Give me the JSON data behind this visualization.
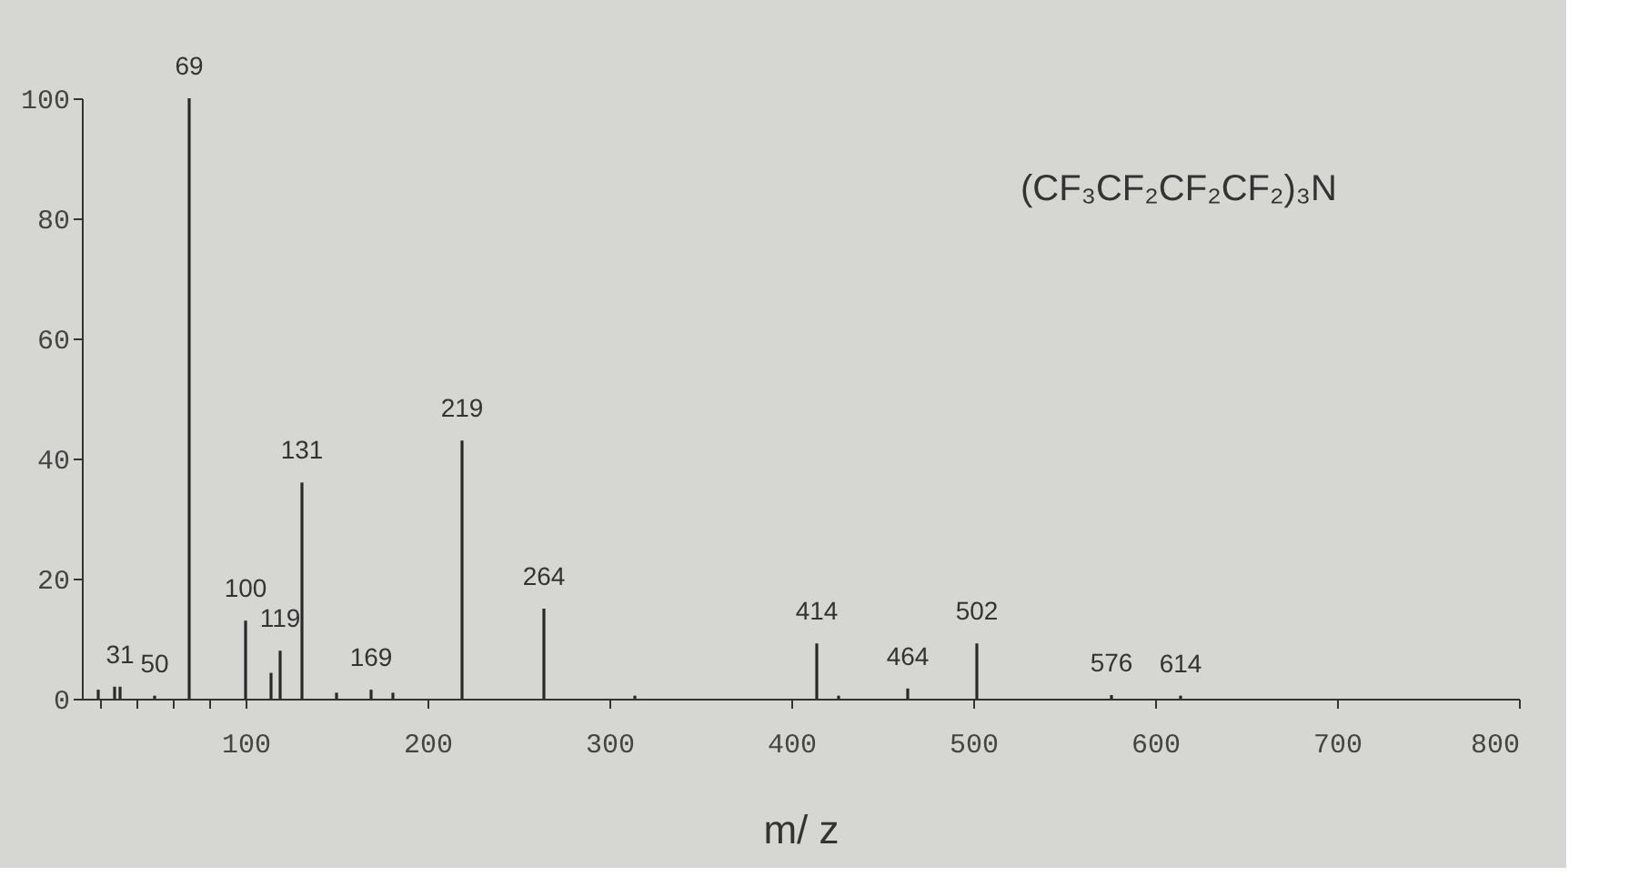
{
  "chart_data": {
    "type": "bar",
    "xlabel": "m/ z",
    "x": [
      19,
      28,
      31,
      50,
      69,
      100,
      114,
      119,
      131,
      150,
      169,
      181,
      219,
      264,
      314,
      414,
      426,
      464,
      502,
      576,
      614
    ],
    "values": [
      1.5,
      2,
      2,
      0.5,
      100,
      13,
      4.3,
      8,
      36,
      1,
      1.5,
      1,
      43,
      15,
      0.5,
      9.2,
      0.5,
      1.7,
      9.2,
      0.6,
      0.5
    ],
    "color": "#2a2a2a",
    "xlim": [
      10,
      800
    ],
    "xticks": [
      {
        "value": 20,
        "label": null
      },
      {
        "value": 40,
        "label": null
      },
      {
        "value": 60,
        "label": null
      },
      {
        "value": 80,
        "label": null
      },
      100,
      200,
      300,
      400,
      500,
      600,
      700,
      800
    ],
    "ylim": [
      0,
      100
    ],
    "yticks": [
      0,
      20,
      40,
      60,
      80,
      100
    ],
    "grid": false,
    "annotations": [
      {
        "text": "31",
        "x": 31,
        "y": 2
      },
      {
        "text": "50",
        "x": 50,
        "y": 0.5
      },
      {
        "text": "69",
        "x": 69,
        "y": 100
      },
      {
        "text": "100",
        "x": 100,
        "y": 13
      },
      {
        "text": "119",
        "x": 119,
        "y": 8
      },
      {
        "text": "131",
        "x": 131,
        "y": 36
      },
      {
        "text": "169",
        "x": 169,
        "y": 1.5
      },
      {
        "text": "219",
        "x": 219,
        "y": 43
      },
      {
        "text": "264",
        "x": 264,
        "y": 15
      },
      {
        "text": "414",
        "x": 414,
        "y": 9.2
      },
      {
        "text": "464",
        "x": 464,
        "y": 1.7
      },
      {
        "text": "502",
        "x": 502,
        "y": 9.2
      },
      {
        "text": "576",
        "x": 576,
        "y": 0.6
      },
      {
        "text": "614",
        "x": 614,
        "y": 0.5
      },
      "(CF₃CF₂CF₂CF₂)₃N"
    ]
  }
}
